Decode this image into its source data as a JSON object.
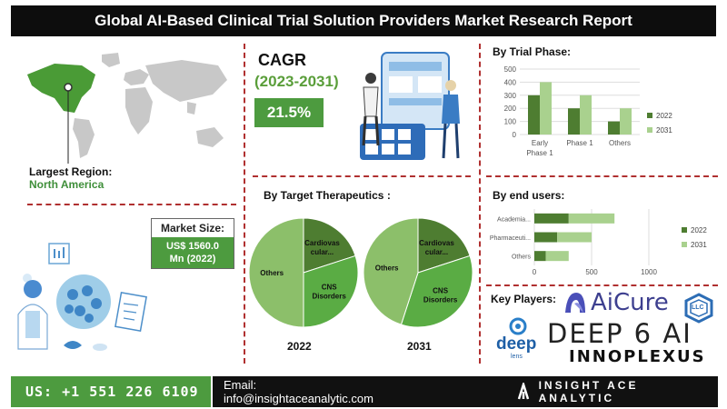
{
  "title": "Global AI-Based Clinical Trial Solution Providers Market Research Report",
  "largest_region": {
    "label": "Largest Region:",
    "value": "North America"
  },
  "market_size": {
    "label": "Market Size:",
    "value_line1": "US$ 1560.0",
    "value_line2": "Mn (2022)"
  },
  "cagr": {
    "label": "CAGR",
    "period": "(2023-2031)",
    "value": "21.5%"
  },
  "colors": {
    "green_dark": "#4e7d31",
    "green_mid": "#5aac44",
    "green_light": "#a9d18e",
    "pie_other": "#8cbf6a"
  },
  "chart_data": [
    {
      "type": "bar",
      "title": "By Trial Phase:",
      "categories": [
        "Early Phase 1",
        "Phase 1",
        "Others"
      ],
      "category_lines": [
        [
          "Early",
          "Phase 1"
        ],
        [
          "Phase 1"
        ],
        [
          "Others"
        ]
      ],
      "series": [
        {
          "name": "2022",
          "values": [
            300,
            200,
            100
          ]
        },
        {
          "name": "2031",
          "values": [
            400,
            300,
            200
          ]
        }
      ],
      "ylim": [
        0,
        500
      ],
      "yticks": [
        "0",
        "100",
        "200",
        "300",
        "400",
        "500"
      ],
      "grid": true,
      "legend": "right"
    },
    {
      "type": "bar",
      "orientation": "horizontal",
      "title": "By end users:",
      "categories": [
        "Academia...",
        "Pharmaceuti...",
        "Others"
      ],
      "series": [
        {
          "name": "2022",
          "values": [
            300,
            200,
            100
          ]
        },
        {
          "name": "2031",
          "values": [
            400,
            300,
            200
          ]
        }
      ],
      "xlim": [
        0,
        1000
      ],
      "xticks": [
        "0",
        "500",
        "1000"
      ],
      "legend": "right"
    },
    {
      "type": "pie",
      "title": "By Target Therapeutics :",
      "caption": "2022",
      "labels": [
        "Cardiovas cular...",
        "CNS Disorders",
        "Others"
      ],
      "values": [
        20,
        30,
        50
      ]
    },
    {
      "type": "pie",
      "caption": "2031",
      "labels": [
        "Cardiovas cular...",
        "CNS Disorders",
        "Others"
      ],
      "values": [
        20,
        35,
        45
      ]
    }
  ],
  "key_players": {
    "label": "Key Players:",
    "logos": [
      {
        "text": "AiCure",
        "icon": "aicure-icon"
      },
      {
        "text": "LLC",
        "icon": "hexagon-icon"
      },
      {
        "text": "deep",
        "sub": "lens",
        "icon": "deep-lens-icon"
      },
      {
        "text": "DEEP 6 AI"
      },
      {
        "text": "INNOPLEXUS"
      }
    ]
  },
  "footer": {
    "phone": "US: +1 551 226 6109",
    "email": "Email: info@insightaceanalytic.com",
    "brand": "INSIGHT ACE ANALYTIC"
  }
}
